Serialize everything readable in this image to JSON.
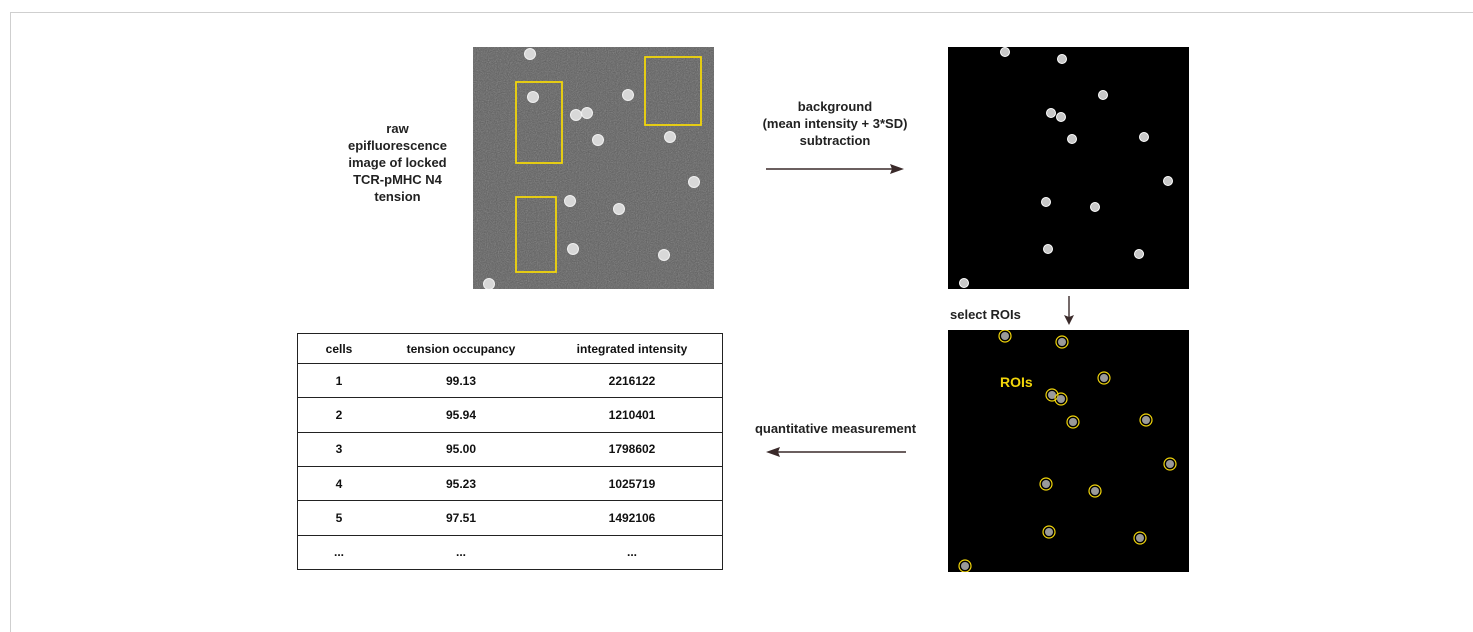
{
  "labels": {
    "raw_image": "raw epifluorescence image of locked TCR-pMHC N4 tension",
    "background_line1": "background",
    "background_line2": "(mean intensity + 3*SD)",
    "background_line3": "subtraction",
    "select_rois": "select ROIs",
    "rois": "ROIs",
    "quantitative": "quantitative measurement"
  },
  "colors": {
    "roi_yellow": "#f2d60a",
    "raw_background": "#5b5b5b",
    "processed_background": "#000000",
    "arrow": "#3a2a2a"
  },
  "table": {
    "headers": [
      "cells",
      "tension occupancy",
      "integrated intensity"
    ],
    "rows": [
      [
        "1",
        "99.13",
        "2216122"
      ],
      [
        "2",
        "95.94",
        "1210401"
      ],
      [
        "3",
        "95.00",
        "1798602"
      ],
      [
        "4",
        "95.23",
        "1025719"
      ],
      [
        "5",
        "97.51",
        "1492106"
      ],
      [
        "...",
        "...",
        "..."
      ]
    ]
  }
}
